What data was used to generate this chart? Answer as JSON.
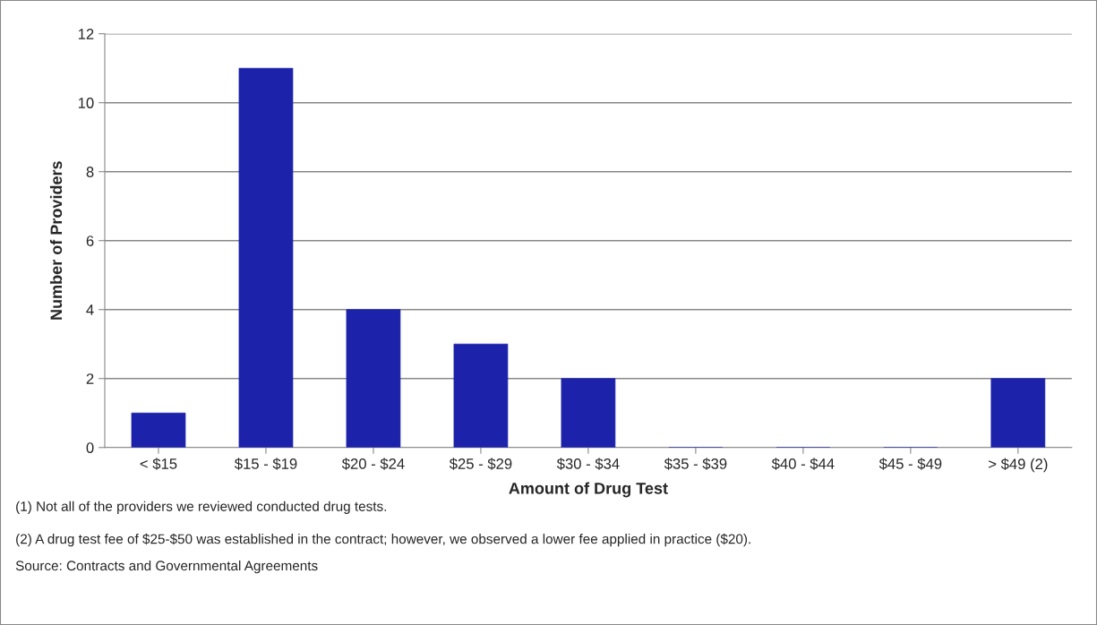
{
  "chart_data": {
    "type": "bar",
    "xlabel": "Amount of Drug Test",
    "ylabel": "Number of Providers",
    "categories": [
      "< $15",
      "$15 - $19",
      "$20 - $24",
      "$25 - $29",
      "$30 - $34",
      "$35 - $39",
      "$40 - $44",
      "$45 - $49",
      "> $49 (2)"
    ],
    "values": [
      1,
      11,
      4,
      3,
      2,
      0,
      0,
      0,
      2
    ],
    "color": "#1c22aa",
    "ylim": [
      0,
      12
    ],
    "yticks": [
      0,
      2,
      4,
      6,
      8,
      10,
      12
    ],
    "grid": "y",
    "annotations": [
      "(1) Not all of the providers we reviewed conducted drug tests.",
      "(2) A drug test fee of $25-$50 was established in the contract; however, we observed a lower fee applied in practice ($20).",
      "Source: Contracts and Governmental Agreements"
    ]
  }
}
